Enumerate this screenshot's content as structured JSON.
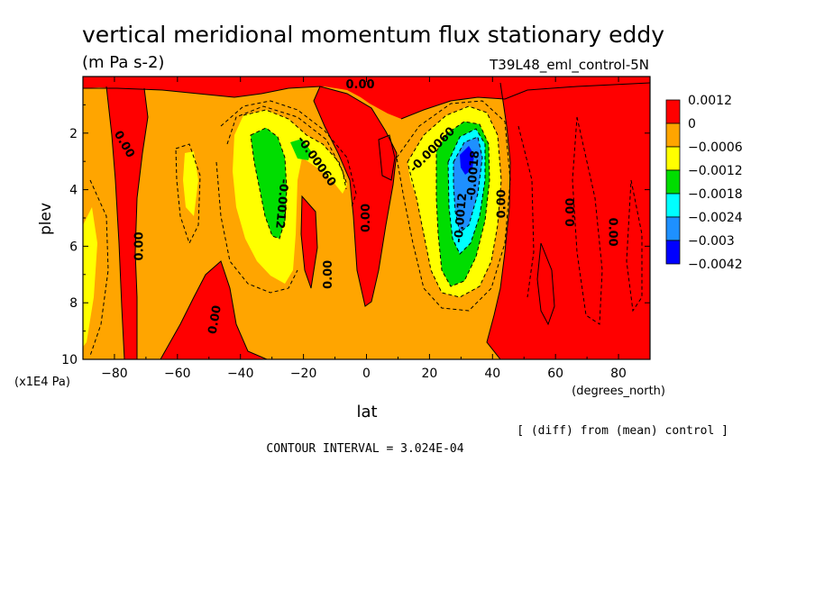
{
  "chart_data": {
    "type": "heatmap",
    "title": "vertical meridional momentum flux stationary eddy",
    "units": "(m Pa s-2)",
    "run_label": "T39L48_eml_control-5N",
    "xlabel": "lat",
    "x_units": "(degrees_north)",
    "ylabel": "plev",
    "y_units": "(x1E4 Pa)",
    "x_ticks": [
      "-80",
      "-60",
      "-40",
      "-20",
      "0",
      "20",
      "40",
      "60",
      "80"
    ],
    "y_ticks": [
      "2",
      "4",
      "6",
      "8",
      "10"
    ],
    "xlim": [
      -90,
      90
    ],
    "ylim": [
      10,
      0
    ],
    "y_inverted": true,
    "footnote_right": "[ (diff) from (mean) control ]",
    "footnote_center": "CONTOUR INTERVAL = 3.024E-04",
    "colorbar": {
      "labels": [
        "0.0012",
        "0",
        "−0.0006",
        "−0.0012",
        "−0.0018",
        "−0.0024",
        "−0.003",
        "−0.0042"
      ],
      "colors": [
        "#ff0000",
        "#ffa500",
        "#ffff00",
        "#00dd00",
        "#00ffff",
        "#1e90ff",
        "#0000ff"
      ]
    },
    "contour_labels": [
      {
        "text": "0.00",
        "lat": -77,
        "plev": 2.4,
        "rot": 60
      },
      {
        "text": "0.00",
        "lat": -72,
        "plev": 6.0,
        "rot": -90
      },
      {
        "text": "0.00",
        "lat": -48,
        "plev": 8.6,
        "rot": -80
      },
      {
        "text": "-0.0012",
        "lat": -27,
        "plev": 4.5,
        "rot": 95
      },
      {
        "text": "-0.00060",
        "lat": -16,
        "plev": 3.0,
        "rot": 55
      },
      {
        "text": "0.00",
        "lat": -12,
        "plev": 7.0,
        "rot": -90
      },
      {
        "text": "0.00",
        "lat": -2,
        "plev": 0.3,
        "rot": 0
      },
      {
        "text": "0.00",
        "lat": 0,
        "plev": 5.0,
        "rot": -90
      },
      {
        "text": "-0.00060",
        "lat": 21,
        "plev": 2.6,
        "rot": -45
      },
      {
        "text": "-0.0012",
        "lat": 30,
        "plev": 5.0,
        "rot": -85
      },
      {
        "text": "-0.0018",
        "lat": 34,
        "plev": 3.5,
        "rot": -85
      },
      {
        "text": "0.00",
        "lat": 43,
        "plev": 4.5,
        "rot": -90
      },
      {
        "text": "0.00",
        "lat": 65,
        "plev": 4.8,
        "rot": -90
      },
      {
        "text": "0.00",
        "lat": 78,
        "plev": 5.5,
        "rot": 90
      }
    ]
  }
}
